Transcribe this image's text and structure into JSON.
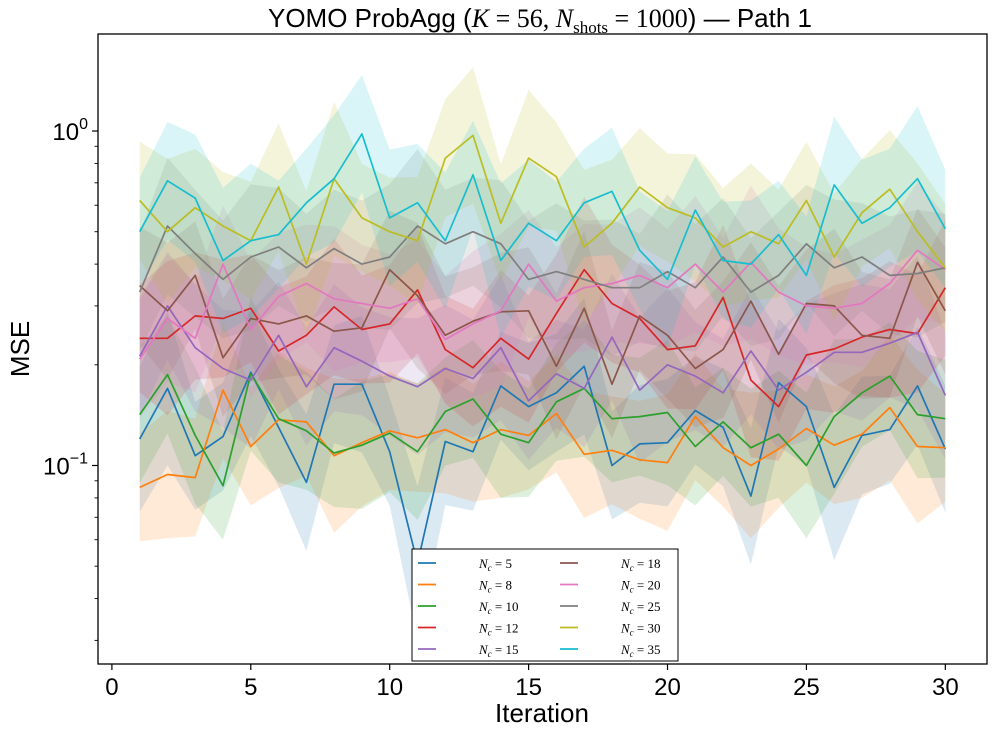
{
  "chart_data": {
    "type": "line",
    "title": "YOMO ProbAgg (K = 56, Nshots = 1000) — Path 1",
    "title_parts": {
      "prefix": "YOMO ProbAgg (",
      "k_symbol": "K",
      "k_value": "56",
      "n_symbol": "N",
      "n_subscript": "shots",
      "n_value": "1000",
      "suffix": ") — Path 1"
    },
    "xlabel": "Iteration",
    "ylabel": "MSE",
    "yscale": "log",
    "xlim": [
      -0.5,
      31.5
    ],
    "ylim": [
      0.0255,
      1.95
    ],
    "xticks": [
      0,
      5,
      10,
      15,
      20,
      25,
      30
    ],
    "xtick_labels": [
      "0",
      "5",
      "10",
      "15",
      "20",
      "25",
      "30"
    ],
    "yticks_major": [
      0.1,
      1
    ],
    "ytick_label_parts": [
      {
        "base": "10",
        "exp": "−1"
      },
      {
        "base": "10",
        "exp": "0"
      }
    ],
    "legend_position": "lower-center",
    "x": [
      1,
      2,
      3,
      4,
      5,
      6,
      7,
      8,
      9,
      10,
      11,
      12,
      13,
      14,
      15,
      16,
      17,
      18,
      19,
      20,
      21,
      22,
      23,
      24,
      25,
      26,
      27,
      28,
      29,
      30
    ],
    "series": [
      {
        "name": "N_c = 5",
        "symbol": "N",
        "subscript": "c",
        "value": "5",
        "color": "#1f77b4",
        "values": [
          0.12,
          0.17,
          0.107,
          0.122,
          0.19,
          0.13,
          0.089,
          0.175,
          0.175,
          0.11,
          0.051,
          0.118,
          0.11,
          0.173,
          0.15,
          0.165,
          0.198,
          0.1,
          0.116,
          0.117,
          0.146,
          0.13,
          0.081,
          0.177,
          0.15,
          0.086,
          0.123,
          0.128,
          0.173,
          0.112
        ]
      },
      {
        "name": "N_c = 8",
        "symbol": "N",
        "subscript": "c",
        "value": "8",
        "color": "#ff7f0e",
        "values": [
          0.086,
          0.094,
          0.092,
          0.168,
          0.114,
          0.137,
          0.135,
          0.107,
          0.117,
          0.127,
          0.121,
          0.128,
          0.117,
          0.128,
          0.123,
          0.143,
          0.108,
          0.111,
          0.104,
          0.102,
          0.14,
          0.113,
          0.1,
          0.112,
          0.129,
          0.115,
          0.124,
          0.149,
          0.114,
          0.113
        ]
      },
      {
        "name": "N_c = 10",
        "symbol": "N",
        "subscript": "c",
        "value": "10",
        "color": "#2ca02c",
        "values": [
          0.142,
          0.187,
          0.123,
          0.087,
          0.188,
          0.138,
          0.127,
          0.109,
          0.115,
          0.125,
          0.11,
          0.145,
          0.158,
          0.124,
          0.117,
          0.155,
          0.17,
          0.138,
          0.14,
          0.144,
          0.114,
          0.135,
          0.113,
          0.124,
          0.1,
          0.14,
          0.165,
          0.185,
          0.142,
          0.138
        ]
      },
      {
        "name": "N_c = 12",
        "symbol": "N",
        "subscript": "c",
        "value": "12",
        "color": "#d62728",
        "values": [
          0.24,
          0.24,
          0.28,
          0.275,
          0.295,
          0.22,
          0.245,
          0.298,
          0.255,
          0.265,
          0.335,
          0.222,
          0.196,
          0.24,
          0.208,
          0.285,
          0.385,
          0.305,
          0.275,
          0.222,
          0.228,
          0.318,
          0.18,
          0.15,
          0.214,
          0.223,
          0.242,
          0.255,
          0.248,
          0.34
        ]
      },
      {
        "name": "N_c = 15",
        "symbol": "N",
        "subscript": "c",
        "value": "15",
        "color": "#9467bd",
        "values": [
          0.212,
          0.3,
          0.225,
          0.195,
          0.18,
          0.245,
          0.172,
          0.225,
          0.205,
          0.185,
          0.172,
          0.195,
          0.182,
          0.225,
          0.156,
          0.188,
          0.17,
          0.242,
          0.168,
          0.2,
          0.185,
          0.165,
          0.22,
          0.168,
          0.19,
          0.218,
          0.218,
          0.232,
          0.25,
          0.162
        ]
      },
      {
        "name": "N_c = 18",
        "symbol": "N",
        "subscript": "c",
        "value": "18",
        "color": "#8c564b",
        "values": [
          0.345,
          0.29,
          0.37,
          0.21,
          0.275,
          0.265,
          0.28,
          0.252,
          0.258,
          0.385,
          0.322,
          0.245,
          0.27,
          0.288,
          0.29,
          0.198,
          0.295,
          0.175,
          0.28,
          0.245,
          0.195,
          0.222,
          0.31,
          0.215,
          0.305,
          0.3,
          0.245,
          0.24,
          0.405,
          0.29
        ]
      },
      {
        "name": "N_c = 20",
        "symbol": "N",
        "subscript": "c",
        "value": "20",
        "color": "#e377c2",
        "values": [
          0.208,
          0.275,
          0.24,
          0.4,
          0.255,
          0.32,
          0.35,
          0.315,
          0.305,
          0.295,
          0.315,
          0.238,
          0.265,
          0.29,
          0.4,
          0.31,
          0.34,
          0.35,
          0.37,
          0.34,
          0.4,
          0.33,
          0.405,
          0.33,
          0.3,
          0.295,
          0.305,
          0.35,
          0.44,
          0.385
        ]
      },
      {
        "name": "N_c = 25",
        "symbol": "N",
        "subscript": "c",
        "value": "25",
        "color": "#7f7f7f",
        "values": [
          0.33,
          0.52,
          0.43,
          0.36,
          0.42,
          0.45,
          0.39,
          0.445,
          0.4,
          0.42,
          0.52,
          0.46,
          0.5,
          0.46,
          0.36,
          0.38,
          0.36,
          0.34,
          0.34,
          0.38,
          0.34,
          0.42,
          0.33,
          0.37,
          0.46,
          0.39,
          0.42,
          0.37,
          0.375,
          0.39
        ]
      },
      {
        "name": "N_c = 30",
        "symbol": "N",
        "subscript": "c",
        "value": "30",
        "color": "#bcbd22",
        "values": [
          0.62,
          0.5,
          0.59,
          0.52,
          0.47,
          0.68,
          0.4,
          0.72,
          0.55,
          0.5,
          0.47,
          0.83,
          0.97,
          0.53,
          0.83,
          0.73,
          0.45,
          0.53,
          0.68,
          0.59,
          0.55,
          0.45,
          0.5,
          0.46,
          0.62,
          0.42,
          0.57,
          0.67,
          0.5,
          0.39
        ]
      },
      {
        "name": "N_c = 35",
        "symbol": "N",
        "subscript": "c",
        "value": "35",
        "color": "#17becf",
        "values": [
          0.5,
          0.71,
          0.63,
          0.41,
          0.47,
          0.49,
          0.61,
          0.72,
          0.98,
          0.55,
          0.61,
          0.47,
          0.74,
          0.41,
          0.53,
          0.47,
          0.61,
          0.66,
          0.44,
          0.36,
          0.58,
          0.41,
          0.4,
          0.49,
          0.37,
          0.69,
          0.53,
          0.59,
          0.72,
          0.51
        ]
      }
    ],
    "band_factor": [
      1.65,
      1.7,
      1.45,
      1.45,
      1.55,
      1.5,
      1.6,
      1.5,
      1.6,
      1.45,
      1.7,
      1.55,
      1.5,
      1.45,
      1.55,
      1.5,
      1.6,
      1.45,
      1.5,
      1.55,
      1.45,
      1.5,
      1.6,
      1.55,
      1.5,
      1.65,
      1.5,
      1.45,
      1.5,
      1.55
    ]
  }
}
